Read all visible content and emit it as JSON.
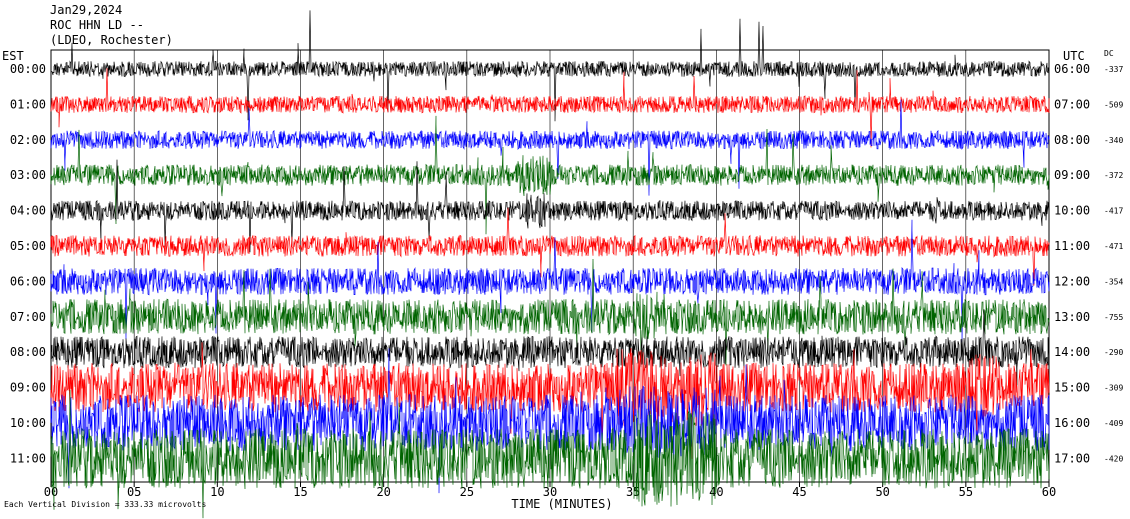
{
  "header": {
    "date": "Jan29,2024",
    "station": "ROC HHN LD --",
    "location": "(LDEO, Rochester)"
  },
  "labels": {
    "left_zone": "EST",
    "right_zone": "UTC",
    "dc": "DC",
    "scale_note": "Each Vertical Division = 333.33 microvolts"
  },
  "chart_data": {
    "type": "line",
    "title": "",
    "xlabel": "TIME (MINUTES)",
    "xlim": [
      0,
      60
    ],
    "x_ticks": [
      "00",
      "05",
      "10",
      "15",
      "20",
      "25",
      "30",
      "35",
      "40",
      "45",
      "50",
      "55",
      "60"
    ],
    "traces": [
      {
        "est": "00:00",
        "utc": "06:00",
        "dc": "-337",
        "color": "#000000",
        "amp": 0.22,
        "burst": []
      },
      {
        "est": "01:00",
        "utc": "07:00",
        "dc": "-509",
        "color": "#ff0000",
        "amp": 0.24,
        "burst": []
      },
      {
        "est": "02:00",
        "utc": "08:00",
        "dc": "-340",
        "color": "#0000ff",
        "amp": 0.26,
        "burst": []
      },
      {
        "est": "03:00",
        "utc": "09:00",
        "dc": "-372",
        "color": "#006400",
        "amp": 0.3,
        "burst": [
          [
            28,
            30,
            2.0
          ]
        ]
      },
      {
        "est": "04:00",
        "utc": "10:00",
        "dc": "-417",
        "color": "#000000",
        "amp": 0.28,
        "burst": [
          [
            28.5,
            29.8,
            1.8
          ],
          [
            53,
            53.5,
            1.5
          ]
        ]
      },
      {
        "est": "05:00",
        "utc": "11:00",
        "dc": "-471",
        "color": "#ff0000",
        "amp": 0.3,
        "burst": []
      },
      {
        "est": "06:00",
        "utc": "12:00",
        "dc": "-354",
        "color": "#0000ff",
        "amp": 0.38,
        "burst": []
      },
      {
        "est": "07:00",
        "utc": "13:00",
        "dc": "-755",
        "color": "#006400",
        "amp": 0.5,
        "burst": [
          [
            35,
            37,
            1.5
          ]
        ]
      },
      {
        "est": "08:00",
        "utc": "14:00",
        "dc": "-290",
        "color": "#000000",
        "amp": 0.45,
        "burst": []
      },
      {
        "est": "09:00",
        "utc": "15:00",
        "dc": "-309",
        "color": "#ff0000",
        "amp": 0.7,
        "burst": [
          [
            34,
            40,
            1.6
          ],
          [
            55,
            57,
            1.4
          ]
        ]
      },
      {
        "est": "10:00",
        "utc": "16:00",
        "dc": "-409",
        "color": "#0000ff",
        "amp": 0.8,
        "burst": [
          [
            34,
            40,
            1.3
          ]
        ]
      },
      {
        "est": "11:00",
        "utc": "17:00",
        "dc": "-420",
        "color": "#006400",
        "amp": 0.85,
        "burst": [
          [
            35,
            40,
            1.6
          ]
        ]
      }
    ]
  }
}
